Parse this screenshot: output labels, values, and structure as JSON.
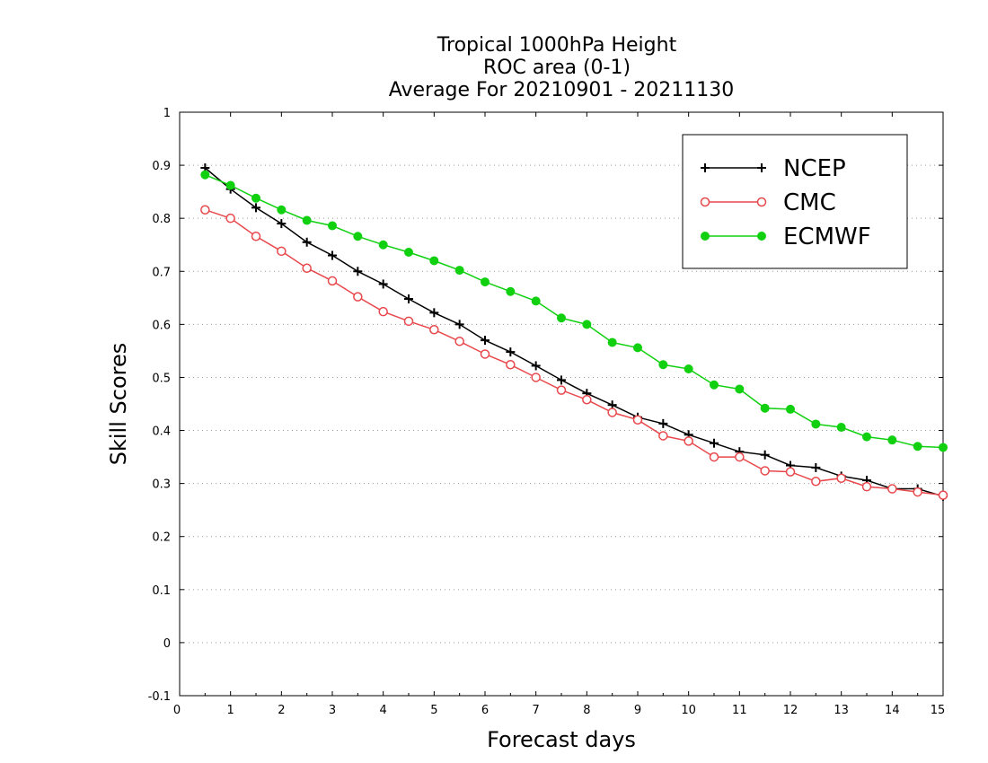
{
  "chart_data": {
    "type": "line",
    "title_lines": [
      "Tropical 1000hPa Height",
      "ROC area (0-1)",
      "Average For 20210901 - 20211130"
    ],
    "xlabel": "Forecast days",
    "ylabel": "Skill Scores",
    "xlim": [
      0,
      15
    ],
    "ylim": [
      -0.1,
      1
    ],
    "xticks": [
      "0",
      "1",
      "2",
      "3",
      "4",
      "5",
      "6",
      "7",
      "8",
      "9",
      "10",
      "11",
      "12",
      "13",
      "14",
      "15"
    ],
    "yticks": [
      "-0.1",
      "0",
      "0.1",
      "0.2",
      "0.3",
      "0.4",
      "0.5",
      "0.6",
      "0.7",
      "0.8",
      "0.9",
      "1"
    ],
    "grid": true,
    "legend_position": "top-right",
    "x": [
      0.5,
      1,
      1.5,
      2,
      2.5,
      3,
      3.5,
      4,
      4.5,
      5,
      5.5,
      6,
      6.5,
      7,
      7.5,
      8,
      8.5,
      9,
      9.5,
      10,
      10.5,
      11,
      11.5,
      12,
      12.5,
      13,
      13.5,
      14,
      14.5,
      15
    ],
    "series": [
      {
        "name": "NCEP",
        "color": "#000000",
        "marker": "plus",
        "values": [
          0.895,
          0.855,
          0.82,
          0.79,
          0.755,
          0.73,
          0.7,
          0.676,
          0.648,
          0.622,
          0.6,
          0.57,
          0.548,
          0.522,
          0.495,
          0.47,
          0.448,
          0.425,
          0.413,
          0.392,
          0.376,
          0.36,
          0.354,
          0.334,
          0.33,
          0.314,
          0.306,
          0.29,
          0.29,
          0.276
        ]
      },
      {
        "name": "CMC",
        "color": "#e8474b",
        "marker": "circle-open",
        "values": [
          0.816,
          0.8,
          0.766,
          0.738,
          0.706,
          0.682,
          0.652,
          0.624,
          0.606,
          0.59,
          0.568,
          0.544,
          0.524,
          0.5,
          0.476,
          0.458,
          0.434,
          0.42,
          0.39,
          0.38,
          0.35,
          0.35,
          0.324,
          0.322,
          0.304,
          0.31,
          0.294,
          0.29,
          0.284,
          0.278
        ]
      },
      {
        "name": "ECMWF",
        "color": "#10d010",
        "marker": "circle-filled",
        "values": [
          0.882,
          0.862,
          0.838,
          0.816,
          0.796,
          0.786,
          0.766,
          0.75,
          0.736,
          0.72,
          0.702,
          0.68,
          0.662,
          0.644,
          0.612,
          0.6,
          0.566,
          0.556,
          0.524,
          0.516,
          0.486,
          0.478,
          0.442,
          0.44,
          0.412,
          0.406,
          0.388,
          0.382,
          0.37,
          0.368
        ]
      }
    ]
  }
}
